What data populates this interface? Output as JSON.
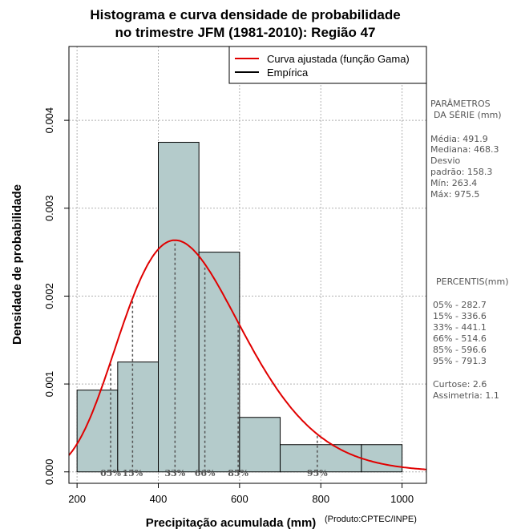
{
  "chart_data": {
    "type": "bar",
    "title_lines": [
      "Histograma e curva densidade de probabilidade",
      "no trimestre JFM (1981-2010): Região 47"
    ],
    "xlabel": "Precipitação acumulada (mm)",
    "ylabel": "Densidade de probabilidade",
    "credit": "(Produto:CPTEC/INPE)",
    "xlim": [
      180,
      1060
    ],
    "ylim": [
      -0.00013,
      0.00484
    ],
    "x_ticks": [
      200,
      400,
      600,
      800,
      1000
    ],
    "x_tick_labels": [
      "200",
      "400",
      "600",
      "800",
      "1000"
    ],
    "y_ticks": [
      0,
      0.001,
      0.002,
      0.003,
      0.004
    ],
    "y_tick_labels": [
      "0.000",
      "0.001",
      "0.002",
      "0.003",
      "0.004"
    ],
    "grid_x": [
      200,
      400,
      600,
      800,
      1000
    ],
    "grid_y": [
      0,
      0.001,
      0.002,
      0.003,
      0.004
    ],
    "bins": [
      {
        "x0": 200,
        "x1": 300,
        "density": 0.00093
      },
      {
        "x0": 300,
        "x1": 400,
        "density": 0.00125
      },
      {
        "x0": 400,
        "x1": 500,
        "density": 0.00375
      },
      {
        "x0": 500,
        "x1": 600,
        "density": 0.0025
      },
      {
        "x0": 600,
        "x1": 700,
        "density": 0.00062
      },
      {
        "x0": 700,
        "x1": 900,
        "density": 0.00031
      },
      {
        "x0": 900,
        "x1": 1000,
        "density": 0.00031
      }
    ],
    "gamma": {
      "mean": 491.9,
      "sd": 158.3
    },
    "percentile_marks": [
      {
        "label": "05%",
        "value": 282.7
      },
      {
        "label": "15%",
        "value": 336.6
      },
      {
        "label": "33%",
        "value": 441.1
      },
      {
        "label": "66%",
        "value": 514.6
      },
      {
        "label": "85%",
        "value": 596.6
      },
      {
        "label": "95%",
        "value": 791.3
      }
    ],
    "legend": {
      "position": "top-right",
      "items": [
        {
          "label": "Curva ajustada (função Gama)",
          "color": "#e00000"
        },
        {
          "label": "Empírica",
          "color": "#000000"
        }
      ]
    },
    "colors": {
      "bar_fill": "#b4cbcb",
      "curve": "#e00000",
      "grid": "#b0b0b0",
      "side_text": "#555555"
    }
  },
  "side_panel": {
    "params_title_1": "PARÂMETROS",
    "params_title_2": "DA SÉRIE (mm)",
    "params": [
      "Média:  491.9",
      "Mediana:  468.3",
      "Desvio",
      "padrão:  158.3",
      "Mín:  263.4",
      "Máx:  975.5"
    ],
    "percentis_title": "PERCENTIS(mm)",
    "percentis": [
      "05% -   282.7",
      "15% -   336.6",
      "33% -   441.1",
      "66% -   514.6",
      "85% -   596.6",
      "95% -   791.3"
    ],
    "curtose": "Curtose:  2.6",
    "assimetria": "Assimetria:  1.1"
  }
}
